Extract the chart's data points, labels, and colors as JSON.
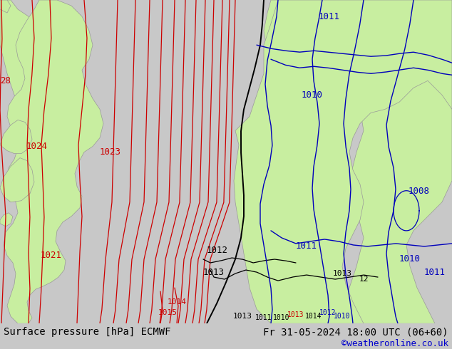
{
  "title_left": "Surface pressure [hPa] ECMWF",
  "title_right": "Fr 31-05-2024 18:00 UTC (06+60)",
  "credit": "©weatheronline.co.uk",
  "bg_color": "#c8c8c8",
  "land_color": "#c8eea0",
  "coast_color": "#999999",
  "red_color": "#cc0000",
  "blue_color": "#0000bb",
  "black_color": "#000000",
  "white_color": "#ffffff",
  "credit_color": "#0000cc",
  "font_size_bottom": 10,
  "font_size_label": 9
}
